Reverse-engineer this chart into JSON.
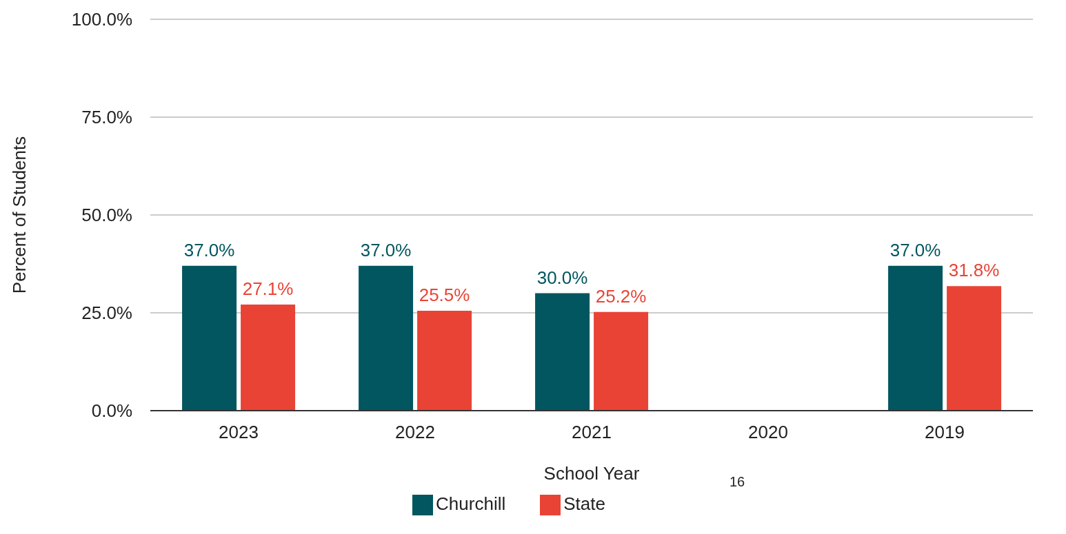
{
  "chart_data": {
    "type": "bar",
    "xlabel": "School Year",
    "ylabel": "Percent of Students",
    "categories": [
      "2023",
      "2022",
      "2021",
      "2020",
      "2019"
    ],
    "series": [
      {
        "name": "Churchill",
        "color": "#01565f",
        "values": [
          37.0,
          37.0,
          30.0,
          null,
          37.0
        ],
        "value_labels": [
          "37.0%",
          "37.0%",
          "30.0%",
          null,
          "37.0%"
        ]
      },
      {
        "name": "State",
        "color": "#e94335",
        "values": [
          27.1,
          25.5,
          25.2,
          null,
          31.8
        ],
        "value_labels": [
          "27.1%",
          "25.5%",
          "25.2%",
          null,
          "31.8%"
        ]
      }
    ],
    "ylim": [
      0,
      100
    ],
    "yticks": [
      {
        "value": 0,
        "label": "0.0%"
      },
      {
        "value": 25,
        "label": "25.0%"
      },
      {
        "value": 50,
        "label": "50.0%"
      },
      {
        "value": 75,
        "label": "75.0%"
      },
      {
        "value": 100,
        "label": "100.0%"
      }
    ],
    "grid": "y",
    "legend": "bottom",
    "annotations": [
      "16"
    ]
  }
}
